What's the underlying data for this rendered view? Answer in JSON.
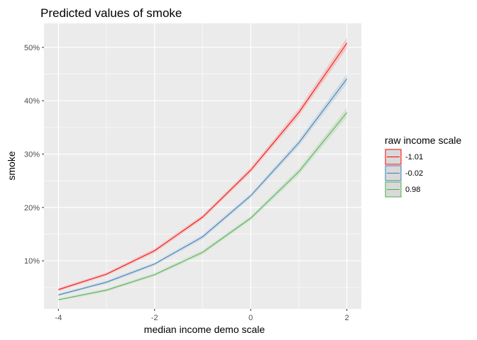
{
  "chart_data": {
    "type": "line",
    "title": "Predicted values of smoke",
    "xlabel": "median income demo scale",
    "ylabel": "smoke",
    "x": [
      -4,
      -3,
      -2,
      -1,
      0,
      1,
      2
    ],
    "xlim": [
      -4.3,
      2.3
    ],
    "ylim": [
      0.01,
      0.545
    ],
    "x_ticks": [
      -4,
      -2,
      0,
      2
    ],
    "x_tick_labels": [
      "-4",
      "-2",
      "0",
      "2"
    ],
    "y_ticks": [
      0.1,
      0.2,
      0.3,
      0.4,
      0.5
    ],
    "y_tick_labels": [
      "10%",
      "20%",
      "30%",
      "40%",
      "50%"
    ],
    "grid": true,
    "legend": {
      "title": "raw income scale",
      "placement": "right"
    },
    "series": [
      {
        "name": "-1.01",
        "color": "#ff0000",
        "values": [
          0.046,
          0.075,
          0.119,
          0.182,
          0.27,
          0.378,
          0.508
        ],
        "ci_half_width": [
          0.003,
          0.003,
          0.004,
          0.004,
          0.005,
          0.007,
          0.01
        ]
      },
      {
        "name": "-0.02",
        "color": "#377eb8",
        "values": [
          0.036,
          0.06,
          0.094,
          0.145,
          0.222,
          0.321,
          0.441
        ],
        "ci_half_width": [
          0.002,
          0.003,
          0.003,
          0.004,
          0.004,
          0.006,
          0.009
        ]
      },
      {
        "name": "0.98",
        "color": "#4daf4a",
        "values": [
          0.027,
          0.045,
          0.074,
          0.116,
          0.18,
          0.267,
          0.378
        ],
        "ci_half_width": [
          0.002,
          0.003,
          0.003,
          0.004,
          0.004,
          0.006,
          0.009
        ]
      }
    ]
  }
}
